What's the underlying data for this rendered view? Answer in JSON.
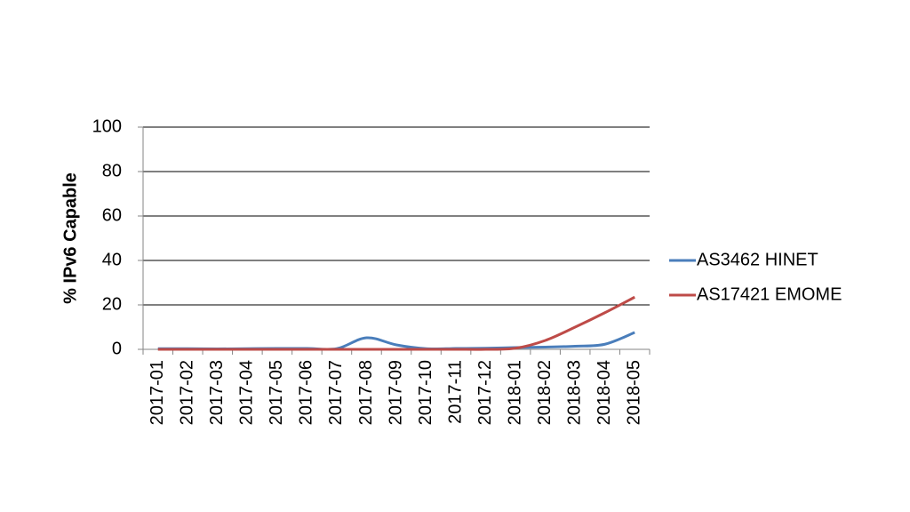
{
  "chart_data": {
    "type": "line",
    "y_label": "% IPv6 Capable",
    "categories": [
      "2017-01",
      "2017-02",
      "2017-03",
      "2017-04",
      "2017-05",
      "2017-06",
      "2017-07",
      "2017-08",
      "2017-09",
      "2017-10",
      "2017-11",
      "2017-12",
      "2018-01",
      "2018-02",
      "2018-03",
      "2018-04",
      "2018-05"
    ],
    "series": [
      {
        "name": "AS3462 HINET",
        "color": "#4a7ebb",
        "values": [
          0.3,
          0.3,
          0.2,
          0.3,
          0.4,
          0.4,
          0.3,
          5.2,
          2,
          0.3,
          0.4,
          0.5,
          0.8,
          1,
          1.4,
          2.3,
          7.6
        ]
      },
      {
        "name": "AS17421 EMOME",
        "color": "#be4b48",
        "values": [
          0,
          0,
          0,
          0,
          0,
          0,
          0,
          0,
          0,
          0,
          0,
          0,
          0.5,
          4,
          10,
          16.5,
          23.5
        ]
      }
    ],
    "ylim": [
      0,
      100
    ],
    "yticks": [
      0,
      20,
      40,
      60,
      80,
      100
    ],
    "grid": true
  }
}
